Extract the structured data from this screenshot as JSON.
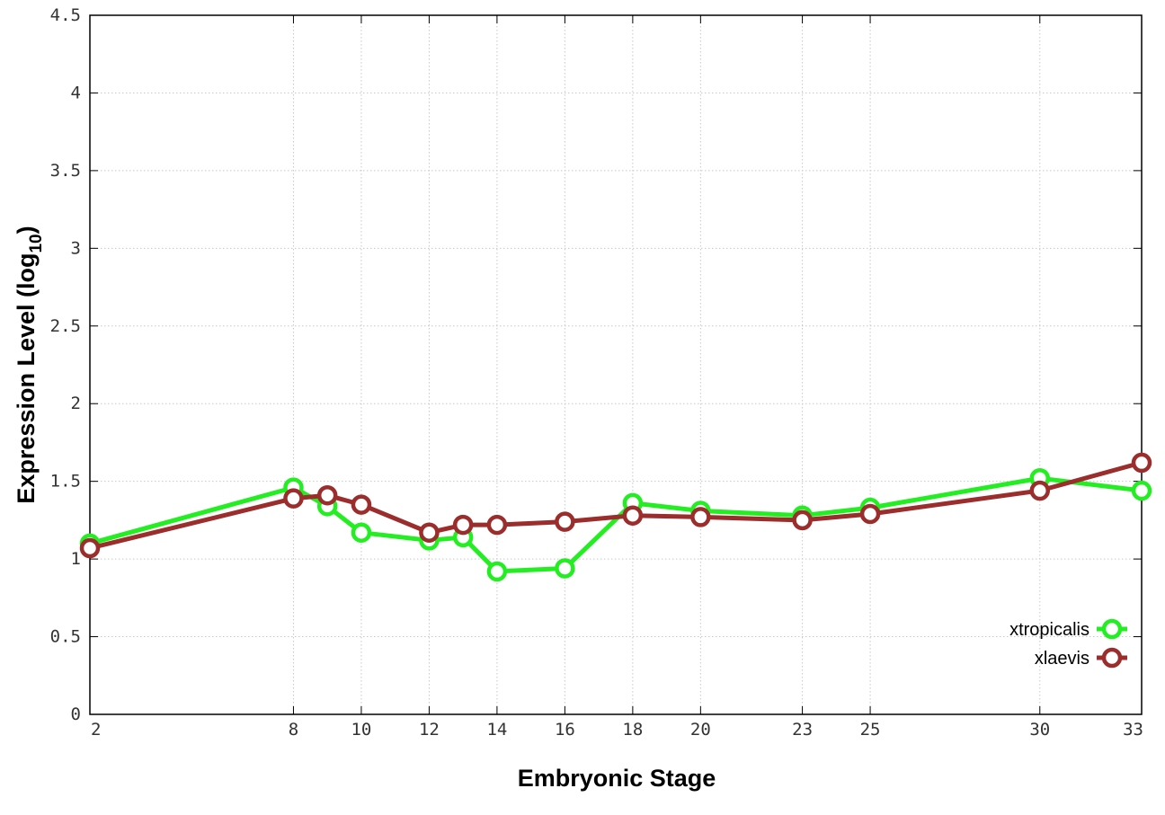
{
  "chart_data": {
    "type": "line",
    "xlabel": "Embryonic Stage",
    "ylabel": {
      "main": "Expression Level (log",
      "sub": "10",
      "close": ")"
    },
    "x_ticks": [
      2,
      8,
      10,
      12,
      14,
      16,
      18,
      20,
      23,
      25,
      30,
      33
    ],
    "y_ticks": [
      0,
      0.5,
      1,
      1.5,
      2,
      2.5,
      3,
      3.5,
      4,
      4.5
    ],
    "y_tick_labels": [
      "0",
      "0.5",
      "1",
      "1.5",
      "2",
      "2.5",
      "3",
      "3.5",
      "4",
      "4.5"
    ],
    "xlim": [
      2,
      33
    ],
    "ylim": [
      0,
      4.5
    ],
    "grid": true,
    "legend_position": "bottom-right",
    "x": [
      2,
      8,
      9,
      10,
      12,
      13,
      14,
      16,
      18,
      20,
      23,
      25,
      30,
      33
    ],
    "series": [
      {
        "name": "xtropicalis",
        "color": "#22ee22",
        "values": [
          1.1,
          1.46,
          1.34,
          1.17,
          1.12,
          1.14,
          0.92,
          0.94,
          1.36,
          1.31,
          1.28,
          1.33,
          1.52,
          1.44
        ]
      },
      {
        "name": "xlaevis",
        "color": "#9b2d2d",
        "values": [
          1.07,
          1.39,
          1.41,
          1.35,
          1.17,
          1.22,
          1.22,
          1.24,
          1.28,
          1.27,
          1.25,
          1.29,
          1.44,
          1.62
        ]
      }
    ]
  }
}
